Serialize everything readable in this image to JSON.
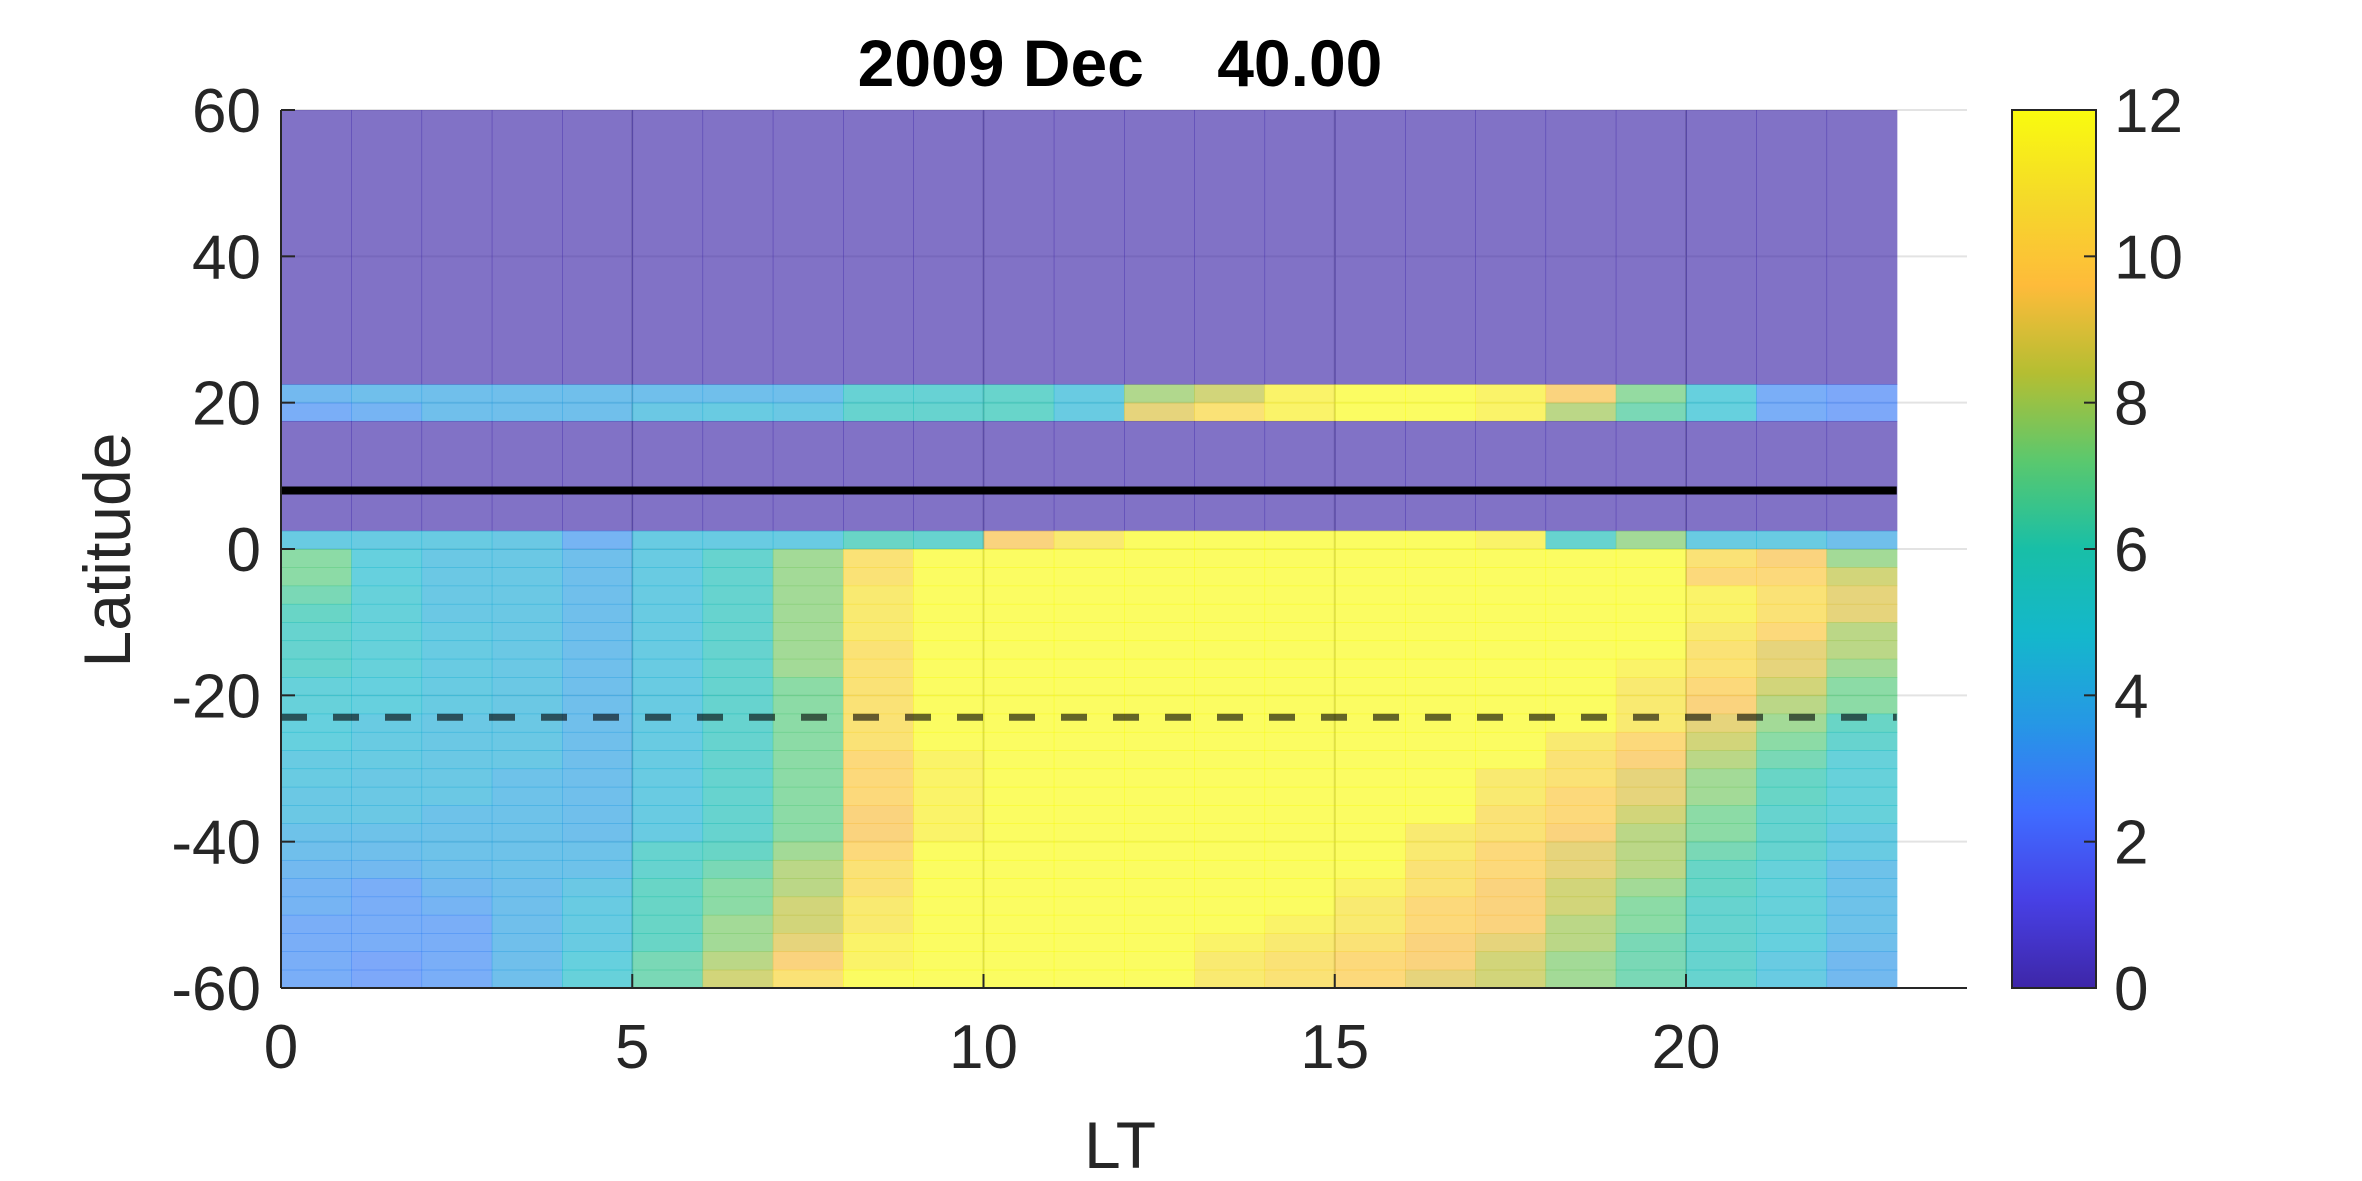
{
  "chart_data": {
    "type": "heatmap",
    "title": "2009 Dec    40.00",
    "xlabel": "LT",
    "ylabel": "Latitude",
    "xlim": [
      0,
      24
    ],
    "ylim": [
      -60,
      60
    ],
    "xticks": [
      0,
      5,
      10,
      15,
      20
    ],
    "yticks": [
      -60,
      -40,
      -20,
      0,
      20,
      40,
      60
    ],
    "colorbar": {
      "min": 0,
      "max": 12,
      "ticks": [
        0,
        2,
        4,
        6,
        8,
        10,
        12
      ],
      "colormap": "parula"
    },
    "grid": true,
    "heat_alpha": 0.65,
    "x_cells": 23,
    "lat_bands": [
      {
        "lat": [
          22.5,
          60
        ],
        "fill": 0
      },
      {
        "lat": [
          20,
          22.5
        ],
        "values": [
          3.5,
          3.8,
          3.8,
          3.8,
          3.8,
          3.8,
          3.8,
          3.8,
          5.3,
          5.3,
          5.7,
          4.5,
          7.8,
          8.5,
          11.5,
          12,
          12,
          11.5,
          9.5,
          7.2,
          4.8,
          3,
          2.8
        ]
      },
      {
        "lat": [
          17.5,
          20
        ],
        "values": [
          3,
          3.3,
          3.8,
          3.8,
          3.8,
          4.3,
          4.5,
          4.3,
          5.5,
          5.5,
          5.8,
          4.5,
          9,
          10.5,
          11.5,
          12,
          12,
          11.5,
          8,
          6.5,
          4.8,
          3,
          2.8
        ]
      },
      {
        "lat": [
          2.5,
          17.5
        ],
        "fill": 0
      },
      {
        "lat": [
          0,
          2.5
        ],
        "values": [
          4.5,
          4.5,
          4.5,
          4.3,
          3.3,
          4.5,
          4.5,
          4.5,
          6,
          5.5,
          9.5,
          11,
          12,
          12,
          12,
          12,
          12,
          11.5,
          5.5,
          7.5,
          4.5,
          4.5,
          3.8
        ]
      },
      {
        "lat": [
          -2.5,
          0
        ],
        "values": [
          7,
          4.8,
          4.3,
          4.3,
          3.8,
          4.5,
          5.5,
          7.5,
          10.5,
          12,
          12,
          12,
          12,
          12,
          12,
          12,
          12,
          12,
          12,
          12,
          10.5,
          9.5,
          7.5
        ]
      },
      {
        "lat": [
          -5,
          -2.5
        ],
        "values": [
          7,
          4.8,
          4.3,
          4.3,
          3.8,
          4.5,
          5.5,
          7.5,
          10.5,
          12,
          12,
          12,
          12,
          12,
          12,
          12,
          12,
          12,
          12,
          12,
          10,
          10,
          8.5
        ]
      },
      {
        "lat": [
          -7.5,
          -5
        ],
        "values": [
          6.5,
          5,
          4.3,
          4.3,
          3.8,
          4.5,
          5.5,
          7.5,
          11,
          12,
          12,
          12,
          12,
          12,
          12,
          12,
          12,
          12,
          12,
          12,
          11.5,
          10.5,
          9
        ]
      },
      {
        "lat": [
          -10,
          -7.5
        ],
        "values": [
          6,
          5,
          4.3,
          4.3,
          3.8,
          4.5,
          5.5,
          7.5,
          11,
          12,
          12,
          12,
          12,
          12,
          12,
          12,
          12,
          12,
          12,
          12,
          11.5,
          10.5,
          9
        ]
      },
      {
        "lat": [
          -12.5,
          -10
        ],
        "values": [
          5.5,
          5,
          4.5,
          4.3,
          3.8,
          4.5,
          5.5,
          7.5,
          11,
          12,
          12,
          12,
          12,
          12,
          12,
          12,
          12,
          12,
          12,
          12,
          11,
          10,
          8
        ]
      },
      {
        "lat": [
          -15,
          -12.5
        ],
        "values": [
          5.5,
          5,
          4.5,
          4.3,
          3.8,
          4.5,
          5.5,
          7.5,
          10.5,
          12,
          12,
          12,
          12,
          12,
          12,
          12,
          12,
          12,
          12,
          12,
          10.5,
          9,
          8
        ]
      },
      {
        "lat": [
          -17.5,
          -15
        ],
        "values": [
          5.5,
          5,
          4.5,
          4.3,
          3.8,
          4.5,
          5.5,
          7.5,
          10.5,
          12,
          12,
          12,
          12,
          12,
          12,
          12,
          12,
          12,
          12,
          11.5,
          10.5,
          9,
          7.5
        ]
      },
      {
        "lat": [
          -20,
          -17.5
        ],
        "values": [
          5,
          4.8,
          4.5,
          4.3,
          3.8,
          4.5,
          5.5,
          7,
          10.5,
          12,
          12,
          12,
          12,
          12,
          12,
          12,
          12,
          12,
          12,
          11,
          10,
          8.5,
          7
        ]
      },
      {
        "lat": [
          -22.5,
          -20
        ],
        "values": [
          5,
          4.8,
          4.5,
          4.3,
          3.8,
          4.5,
          5.5,
          7,
          10.5,
          12,
          12,
          12,
          12,
          12,
          12,
          12,
          12,
          12,
          12,
          11,
          9.5,
          8,
          7
        ]
      },
      {
        "lat": [
          -25,
          -22.5
        ],
        "values": [
          4.8,
          4.5,
          4.3,
          4.3,
          3.8,
          4.5,
          5.5,
          7,
          10.5,
          12,
          12,
          12,
          12,
          12,
          12,
          12,
          12,
          12,
          12,
          11,
          9,
          7.5,
          6
        ]
      },
      {
        "lat": [
          -27.5,
          -25
        ],
        "values": [
          4.8,
          4.5,
          4.3,
          4.3,
          3.8,
          4.5,
          5.5,
          7,
          10.5,
          12,
          12,
          12,
          12,
          12,
          12,
          12,
          12,
          12,
          11,
          10,
          8.5,
          7,
          5.5
        ]
      },
      {
        "lat": [
          -30,
          -27.5
        ],
        "values": [
          4.5,
          4.5,
          4.3,
          4.3,
          3.8,
          4.5,
          5.5,
          7,
          10,
          11.5,
          12,
          12,
          12,
          12,
          12,
          12,
          12,
          12,
          10.5,
          9.5,
          8,
          6.5,
          5
        ]
      },
      {
        "lat": [
          -32.5,
          -30
        ],
        "values": [
          4.5,
          4.3,
          4.3,
          4,
          3.8,
          4.5,
          5.5,
          7,
          10,
          11.5,
          12,
          12,
          12,
          12,
          12,
          12,
          12,
          11,
          10.5,
          9,
          7.5,
          6,
          5
        ]
      },
      {
        "lat": [
          -35,
          -32.5
        ],
        "values": [
          4.3,
          4.3,
          4.3,
          4,
          3.8,
          4.5,
          5.5,
          7,
          10,
          11.5,
          12,
          12,
          12,
          12,
          12,
          12,
          12,
          11,
          10,
          9,
          7.5,
          6,
          5
        ]
      },
      {
        "lat": [
          -37.5,
          -35
        ],
        "values": [
          4.3,
          4.3,
          4,
          4,
          3.8,
          4.5,
          5.5,
          7,
          9.5,
          11.5,
          12,
          12,
          12,
          12,
          12,
          12,
          12,
          10.5,
          10,
          8.5,
          7,
          5.5,
          5
        ]
      },
      {
        "lat": [
          -40,
          -37.5
        ],
        "values": [
          4,
          4,
          4,
          4,
          3.8,
          4.5,
          5.5,
          7,
          9.5,
          11.5,
          12,
          12,
          12,
          12,
          12,
          12,
          11,
          10.5,
          9.5,
          8,
          7,
          5.5,
          4.5
        ]
      },
      {
        "lat": [
          -42.5,
          -40
        ],
        "values": [
          3.8,
          3.8,
          4,
          4,
          4,
          5.5,
          6,
          7.5,
          10,
          12,
          12,
          12,
          12,
          12,
          12,
          12,
          11,
          10,
          9,
          8,
          6.5,
          5.5,
          4.5
        ]
      },
      {
        "lat": [
          -45,
          -42.5
        ],
        "values": [
          3.5,
          3.5,
          3.8,
          4,
          4,
          5.5,
          6.5,
          8,
          10.5,
          12,
          12,
          12,
          12,
          12,
          12,
          12,
          10.5,
          10,
          9,
          8,
          6,
          5,
          4
        ]
      },
      {
        "lat": [
          -47.5,
          -45
        ],
        "values": [
          3.3,
          3,
          3.5,
          3.8,
          4.3,
          6,
          7,
          8,
          10.5,
          12,
          12,
          12,
          12,
          12,
          12,
          11.5,
          10.5,
          9.5,
          8.5,
          7.5,
          6,
          5,
          4
        ]
      },
      {
        "lat": [
          -50,
          -47.5
        ],
        "values": [
          3.3,
          3,
          3.3,
          3.8,
          4.5,
          6,
          7,
          8.5,
          11,
          12,
          12,
          12,
          12,
          12,
          12,
          11,
          10,
          9.5,
          8.5,
          7,
          5.5,
          5,
          4
        ]
      },
      {
        "lat": [
          -52.5,
          -50
        ],
        "values": [
          3,
          3,
          3,
          3.8,
          4.5,
          6,
          7.5,
          8.5,
          11,
          12,
          12,
          12,
          12,
          12,
          11.5,
          11,
          10,
          9.5,
          8,
          7,
          5.5,
          5,
          4
        ]
      },
      {
        "lat": [
          -55,
          -52.5
        ],
        "values": [
          3,
          3,
          3,
          3.8,
          4.5,
          6,
          7.5,
          9,
          11.5,
          12,
          12,
          12,
          12,
          11.5,
          11,
          10.5,
          9.5,
          9,
          8,
          6.5,
          5.5,
          4.8,
          3.8
        ]
      },
      {
        "lat": [
          -57.5,
          -55
        ],
        "values": [
          3,
          2.8,
          3,
          3.8,
          4.8,
          6.5,
          8,
          9.5,
          11.5,
          12,
          12,
          12,
          12,
          11,
          10.5,
          10,
          9.5,
          8.5,
          7.5,
          6.5,
          5.5,
          4.5,
          3.5
        ]
      },
      {
        "lat": [
          -60,
          -57.5
        ],
        "values": [
          3,
          2.8,
          3,
          3.8,
          5,
          6.5,
          8.5,
          10.5,
          12,
          12,
          12,
          12,
          12,
          11,
          10.5,
          10,
          9,
          8.5,
          7.5,
          6.5,
          5.5,
          4.5,
          3.5
        ]
      }
    ],
    "lines": [
      {
        "lat": 8,
        "x": [
          0,
          23
        ],
        "style": "solid",
        "color": "#000000"
      },
      {
        "lat": -23,
        "x": [
          0,
          23
        ],
        "style": "dashed",
        "color": "#000000"
      }
    ]
  }
}
